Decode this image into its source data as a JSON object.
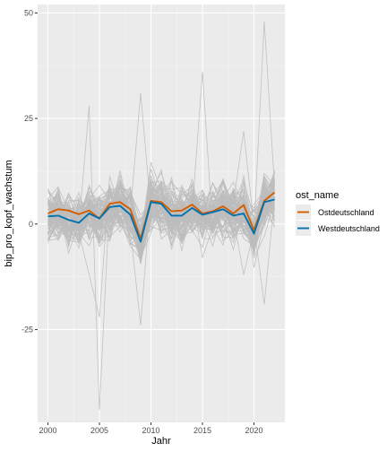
{
  "chart_data": {
    "type": "line",
    "title": "",
    "xlabel": "Jahr",
    "ylabel": "bip_pro_kopf_wachstum",
    "xlim": [
      1999,
      2023
    ],
    "ylim": [
      -47,
      52
    ],
    "x_ticks": [
      2000,
      2005,
      2010,
      2015,
      2020
    ],
    "y_ticks": [
      -25,
      0,
      25,
      50
    ],
    "grid": true,
    "legend": {
      "title": "ost_name",
      "position": "right"
    },
    "background_series_color": "#bdbdbd",
    "x": [
      2000,
      2001,
      2002,
      2003,
      2004,
      2005,
      2006,
      2007,
      2008,
      2009,
      2010,
      2011,
      2012,
      2013,
      2014,
      2015,
      2016,
      2017,
      2018,
      2019,
      2020,
      2021,
      2022
    ],
    "series": [
      {
        "name": "Ostdeutschland",
        "color": "#d55e00",
        "values": [
          2.5,
          3.5,
          3.2,
          2.3,
          3.2,
          1.3,
          4.8,
          5.2,
          3.5,
          -3.5,
          5.5,
          5.2,
          3.0,
          3.2,
          4.6,
          2.5,
          3.0,
          4.2,
          2.5,
          4.5,
          -1.5,
          5.5,
          7.5
        ]
      },
      {
        "name": "Westdeutschland",
        "color": "#0072b2",
        "values": [
          1.8,
          2.0,
          1.0,
          0.3,
          2.5,
          1.3,
          4.0,
          4.3,
          2.2,
          -4.2,
          5.2,
          4.8,
          2.0,
          2.0,
          3.8,
          2.2,
          2.8,
          3.5,
          2.0,
          2.5,
          -2.3,
          5.2,
          5.8
        ]
      }
    ]
  }
}
